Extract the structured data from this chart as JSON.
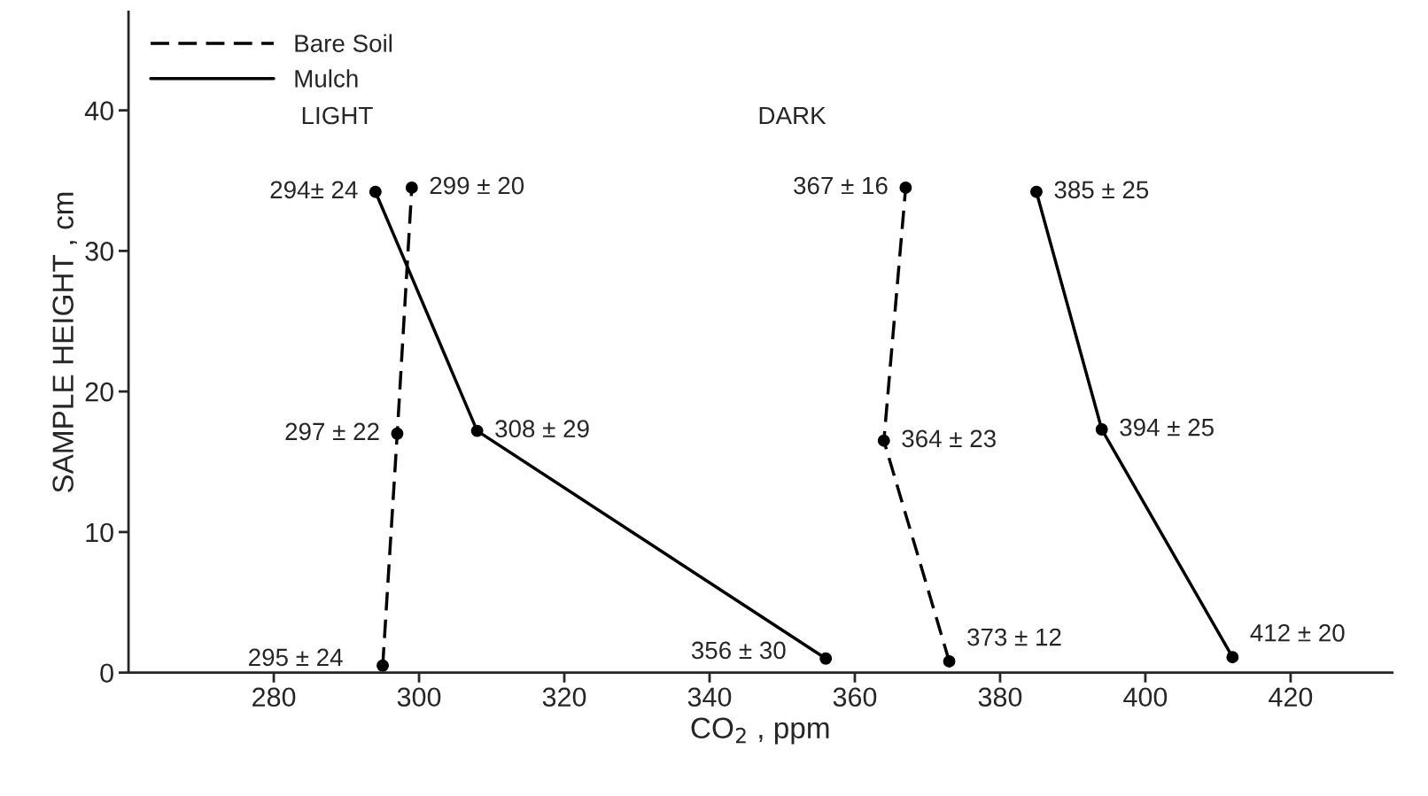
{
  "chart_data": {
    "type": "line",
    "xlabel": "CO$_{2}$ , ppm",
    "ylabel": "SAMPLE HEIGHT , cm",
    "xlim": [
      260,
      434
    ],
    "ylim": [
      0,
      47
    ],
    "xticks": [
      280,
      300,
      320,
      340,
      360,
      380,
      400,
      420
    ],
    "yticks": [
      0,
      10,
      20,
      30,
      40
    ],
    "grid": false,
    "legend": "top left",
    "marker": "circle",
    "annotations": [
      "LIGHT",
      "DARK",
      {
        "text": "295 ± 24",
        "x": 295,
        "y": 0.5
      },
      {
        "text": "297 ± 22",
        "x": 297,
        "y": 17
      },
      {
        "text": "299 ± 20",
        "x": 299,
        "y": 34.5
      },
      {
        "text": "356 ± 30",
        "x": 356,
        "y": 1
      },
      {
        "text": "308 ± 29",
        "x": 308,
        "y": 17.2
      },
      {
        "text": "294± 24",
        "x": 294,
        "y": 34.2
      },
      {
        "text": "373 ± 12",
        "x": 373,
        "y": 0.8
      },
      {
        "text": "364 ± 23",
        "x": 364,
        "y": 16.5
      },
      {
        "text": "367 ± 16",
        "x": 367,
        "y": 34.5
      },
      {
        "text": "412 ± 20",
        "x": 412,
        "y": 1.1
      },
      {
        "text": "394 ± 25",
        "x": 394,
        "y": 17.3
      },
      {
        "text": "385 ± 25",
        "x": 385,
        "y": 34.2
      }
    ],
    "series": [
      {
        "name": "Bare Soil",
        "color": "#000000",
        "line_style": "dashed",
        "x": [
          295,
          297,
          299
        ],
        "values": [
          0.5,
          17,
          34.5
        ]
      },
      {
        "name": "Mulch",
        "color": "#000000",
        "line_style": "solid",
        "x": [
          356,
          308,
          294
        ],
        "values": [
          1,
          17.2,
          34.2
        ]
      },
      {
        "color": "#000000",
        "line_style": "dashed",
        "x": [
          373,
          364,
          367
        ],
        "values": [
          0.8,
          16.5,
          34.5
        ]
      },
      {
        "color": "#000000",
        "line_style": "solid",
        "x": [
          412,
          394,
          385
        ],
        "values": [
          1.1,
          17.3,
          34.2
        ]
      }
    ]
  }
}
